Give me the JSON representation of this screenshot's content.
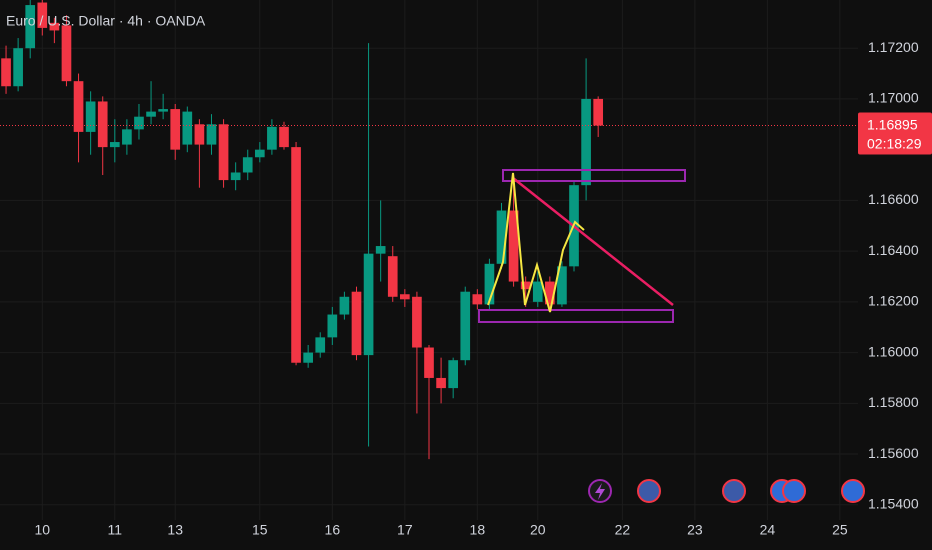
{
  "chart_data": {
    "type": "candlestick",
    "title": "Euro / U.S. Dollar · 4h · OANDA",
    "categories": [
      null,
      null,
      null,
      "10",
      null,
      null,
      null,
      null,
      null,
      "11",
      null,
      null,
      null,
      null,
      "13",
      null,
      null,
      null,
      null,
      null,
      null,
      "15",
      null,
      null,
      null,
      null,
      null,
      "16",
      null,
      null,
      null,
      null,
      null,
      "17",
      null,
      null,
      null,
      null,
      null,
      "18",
      null,
      null,
      null,
      null,
      "20",
      null,
      null,
      null,
      null,
      null,
      null,
      "22",
      null,
      null,
      null,
      null,
      null,
      "23",
      null,
      null,
      null,
      null,
      null,
      "24",
      null,
      null,
      null,
      null,
      null,
      "25",
      null
    ],
    "open": [
      1.1716,
      1.1705,
      1.172,
      1.1738,
      1.173,
      1.1729,
      1.1707,
      1.1687,
      1.1699,
      1.1681,
      1.1682,
      1.1688,
      1.1693,
      1.1695,
      1.1696,
      1.1682,
      1.169,
      1.1682,
      1.169,
      1.1668,
      1.1671,
      1.1677,
      1.168,
      1.1689,
      1.1681,
      1.1596,
      1.16,
      1.1606,
      1.1615,
      1.1624,
      1.1599,
      1.1639,
      1.1638,
      1.1623,
      1.1622,
      1.1602,
      1.159,
      1.1586,
      1.1597,
      1.1623,
      1.1619,
      1.1635,
      1.1656,
      1.1628,
      1.162,
      1.1628,
      1.1619,
      1.1634,
      1.1666,
      1.17,
      null,
      null,
      null,
      null,
      null,
      null,
      null,
      null,
      null,
      null,
      null,
      null,
      null,
      null,
      null,
      null,
      null,
      null,
      null,
      null,
      null
    ],
    "high": [
      1.1721,
      1.1724,
      1.1739,
      1.1739,
      1.1732,
      1.1733,
      1.171,
      1.1703,
      1.1701,
      1.1692,
      1.1692,
      1.1698,
      1.1707,
      1.1702,
      1.1698,
      1.1697,
      1.1692,
      1.1694,
      1.1692,
      1.1675,
      1.168,
      1.1683,
      1.1692,
      1.1691,
      1.1683,
      1.1603,
      1.1608,
      1.1618,
      1.1624,
      1.1626,
      1.1722,
      1.166,
      1.1642,
      1.1625,
      1.1624,
      1.1603,
      1.1598,
      1.1598,
      1.1626,
      1.1625,
      1.1637,
      1.1659,
      1.167,
      1.163,
      1.1632,
      1.163,
      1.1636,
      1.1668,
      1.1716,
      1.1701,
      null,
      null,
      null,
      null,
      null,
      null,
      null,
      null,
      null,
      null,
      null,
      null,
      null,
      null,
      null,
      null,
      null,
      null,
      null,
      null,
      null
    ],
    "low": [
      1.1702,
      1.1703,
      1.1716,
      1.1725,
      1.1722,
      1.1705,
      1.1675,
      1.1678,
      1.167,
      1.1675,
      1.1678,
      1.1684,
      1.169,
      1.1692,
      1.1676,
      1.1679,
      1.1665,
      1.1678,
      1.1665,
      1.1664,
      1.1668,
      1.1675,
      1.1678,
      1.168,
      1.1595,
      1.1594,
      1.1598,
      1.1603,
      1.1613,
      1.1597,
      1.1563,
      1.1628,
      1.162,
      1.1618,
      1.1576,
      1.1558,
      1.158,
      1.1582,
      1.1595,
      1.1617,
      1.1617,
      1.1633,
      1.1626,
      1.1618,
      1.1618,
      1.1617,
      1.1618,
      1.1632,
      1.166,
      1.1685,
      null,
      null,
      null,
      null,
      null,
      null,
      null,
      null,
      null,
      null,
      null,
      null,
      null,
      null,
      null,
      null,
      null,
      null,
      null,
      null,
      null
    ],
    "close": [
      1.1705,
      1.172,
      1.1737,
      1.1728,
      1.1727,
      1.1707,
      1.1687,
      1.1699,
      1.1681,
      1.1683,
      1.1688,
      1.1693,
      1.1695,
      1.1696,
      1.168,
      1.1695,
      1.1682,
      1.169,
      1.1668,
      1.1671,
      1.1677,
      1.168,
      1.1689,
      1.1681,
      1.1596,
      1.16,
      1.1606,
      1.1615,
      1.1622,
      1.1599,
      1.1639,
      1.1642,
      1.1622,
      1.1621,
      1.1602,
      1.159,
      1.1586,
      1.1597,
      1.1624,
      1.1619,
      1.1635,
      1.1656,
      1.1628,
      1.1625,
      1.1628,
      1.1619,
      1.1634,
      1.1666,
      1.17,
      1.16895,
      null,
      null,
      null,
      null,
      null,
      null,
      null,
      null,
      null,
      null,
      null,
      null,
      null,
      null,
      null,
      null,
      null,
      null,
      null,
      null,
      null
    ],
    "up_color": "#089981",
    "down_color": "#f23645",
    "ylim": [
      1.1534,
      1.1739
    ],
    "yticks": [
      {
        "value": 1.172,
        "label": "1.17200"
      },
      {
        "value": 1.17,
        "label": "1.17000"
      },
      {
        "value": 1.166,
        "label": "1.16600"
      },
      {
        "value": 1.164,
        "label": "1.16400"
      },
      {
        "value": 1.162,
        "label": "1.16200"
      },
      {
        "value": 1.16,
        "label": "1.16000"
      },
      {
        "value": 1.158,
        "label": "1.15800"
      },
      {
        "value": 1.156,
        "label": "1.15600"
      },
      {
        "value": 1.154,
        "label": "1.15400"
      }
    ],
    "last_price": 1.16895,
    "countdown": "02:18:29",
    "grid": true
  }
}
